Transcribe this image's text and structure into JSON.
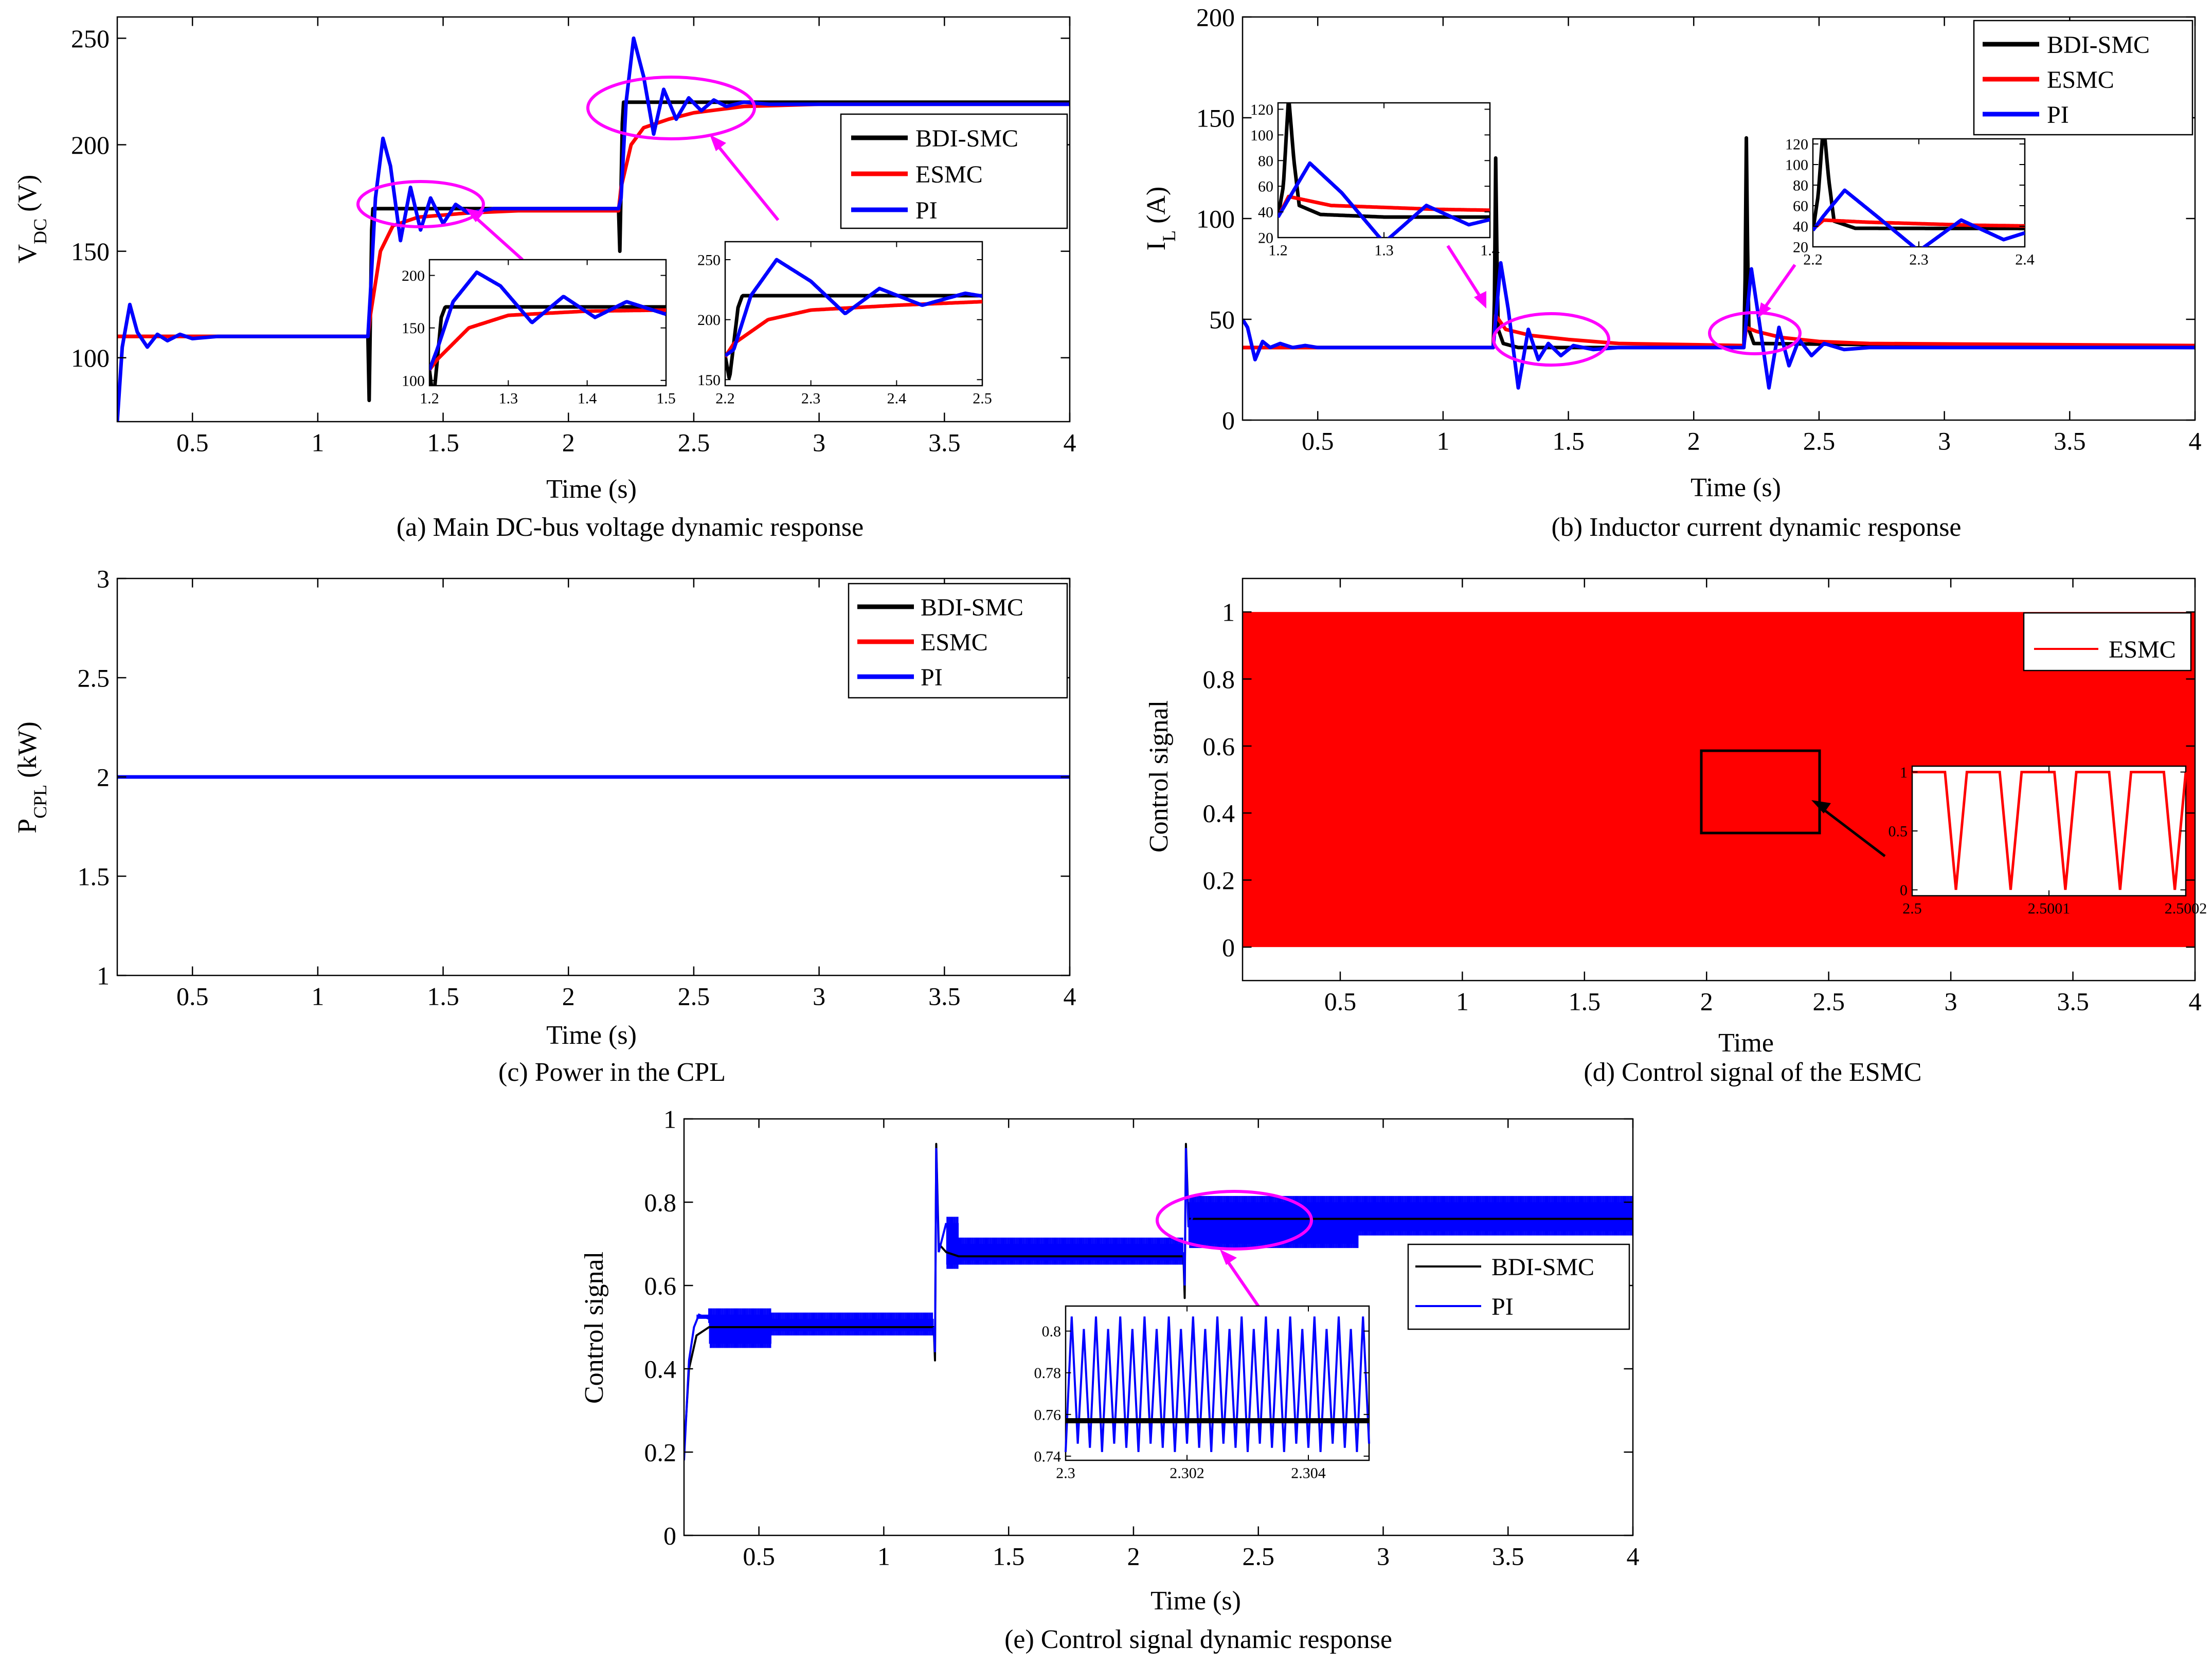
{
  "colors": {
    "bdi": "#000000",
    "esmc": "#ff0000",
    "pi": "#0000ff",
    "highlight": "#ff00ff"
  },
  "chart_data": [
    {
      "id": "a",
      "type": "line",
      "caption": "(a) Main DC-bus voltage dynamic response",
      "xlabel": "Time (s)",
      "ylabel": "V",
      "ylabel_sub": "DC",
      "ylabel_tail": " (V)",
      "xlim": [
        0.2,
        4
      ],
      "ylim": [
        70,
        260
      ],
      "xticks": [
        0.5,
        1,
        1.5,
        2,
        2.5,
        3,
        3.5,
        4
      ],
      "yticks": [
        100,
        150,
        200,
        250
      ],
      "grid": false,
      "legend": "top-right",
      "series": [
        {
          "name": "BDI-SMC",
          "x": [
            0.2,
            1.2,
            1.205,
            1.21,
            1.215,
            1.22,
            1.23,
            1.6,
            2.2,
            2.205,
            2.21,
            2.215,
            2.22,
            2.23,
            4
          ],
          "y": [
            110,
            110,
            80,
            120,
            160,
            170,
            170,
            170,
            170,
            150,
            180,
            210,
            220,
            220,
            220
          ]
        },
        {
          "name": "ESMC",
          "x": [
            0.2,
            1.2,
            1.21,
            1.25,
            1.3,
            1.4,
            1.6,
            1.8,
            2.2,
            2.21,
            2.25,
            2.3,
            2.4,
            2.5,
            2.7,
            3.0,
            4
          ],
          "y": [
            110,
            110,
            120,
            150,
            162,
            166,
            168,
            169,
            169,
            180,
            200,
            208,
            212,
            215,
            218,
            219,
            219
          ]
        },
        {
          "name": "PI",
          "x": [
            0.2,
            0.22,
            0.25,
            0.28,
            0.32,
            0.36,
            0.4,
            0.45,
            0.5,
            0.6,
            1.2,
            1.21,
            1.23,
            1.26,
            1.29,
            1.33,
            1.37,
            1.41,
            1.45,
            1.5,
            1.55,
            1.6,
            1.7,
            2.2,
            2.21,
            2.23,
            2.26,
            2.3,
            2.34,
            2.38,
            2.43,
            2.48,
            2.53,
            2.58,
            2.63,
            2.7,
            2.8,
            4
          ],
          "y": [
            70,
            105,
            125,
            112,
            105,
            111,
            108,
            111,
            109,
            110,
            110,
            130,
            175,
            203,
            190,
            155,
            180,
            160,
            175,
            163,
            172,
            168,
            170,
            170,
            175,
            220,
            250,
            232,
            205,
            226,
            212,
            222,
            216,
            221,
            218,
            220,
            219,
            219
          ]
        }
      ],
      "insets": [
        {
          "xlim": [
            1.2,
            1.5
          ],
          "ylim": [
            95,
            215
          ],
          "xticks": [
            1.2,
            1.3,
            1.4,
            1.5
          ],
          "yticks": [
            100,
            150,
            200
          ]
        },
        {
          "xlim": [
            2.2,
            2.5
          ],
          "ylim": [
            145,
            265
          ],
          "xticks": [
            2.2,
            2.3,
            2.4,
            2.5
          ],
          "yticks": [
            150,
            200,
            250
          ]
        }
      ]
    },
    {
      "id": "b",
      "type": "line",
      "caption": "(b) Inductor current dynamic response",
      "xlabel": "Time (s)",
      "ylabel": "I",
      "ylabel_sub": "L",
      "ylabel_tail": " (A)",
      "xlim": [
        0.2,
        4
      ],
      "ylim": [
        0,
        200
      ],
      "xticks": [
        0.5,
        1,
        1.5,
        2,
        2.5,
        3,
        3.5,
        4
      ],
      "yticks": [
        0,
        50,
        100,
        150,
        200
      ],
      "grid": false,
      "legend": "top-right",
      "series": [
        {
          "name": "BDI-SMC",
          "x": [
            0.2,
            1.2,
            1.205,
            1.21,
            1.215,
            1.22,
            1.24,
            1.3,
            2.2,
            2.205,
            2.21,
            2.215,
            2.22,
            2.24,
            4
          ],
          "y": [
            36,
            36,
            60,
            130,
            80,
            45,
            38,
            36,
            36,
            70,
            140,
            85,
            45,
            38,
            36
          ]
        },
        {
          "name": "ESMC",
          "x": [
            0.2,
            1.2,
            1.21,
            1.25,
            1.35,
            1.5,
            1.7,
            2.2,
            2.21,
            2.25,
            2.35,
            2.5,
            2.7,
            4
          ],
          "y": [
            36,
            36,
            52,
            45,
            42,
            40,
            38,
            37,
            46,
            44,
            41,
            39,
            38,
            37
          ]
        },
        {
          "name": "PI",
          "x": [
            0.2,
            0.22,
            0.25,
            0.28,
            0.31,
            0.35,
            0.4,
            0.45,
            0.5,
            1.2,
            1.21,
            1.23,
            1.26,
            1.3,
            1.34,
            1.38,
            1.42,
            1.47,
            1.52,
            1.6,
            1.7,
            2.2,
            2.21,
            2.23,
            2.26,
            2.3,
            2.34,
            2.38,
            2.42,
            2.47,
            2.52,
            2.6,
            2.7,
            4
          ],
          "y": [
            50,
            46,
            30,
            39,
            36,
            38,
            36,
            37,
            36,
            36,
            50,
            78,
            55,
            16,
            45,
            30,
            38,
            32,
            37,
            35,
            36,
            36,
            50,
            75,
            50,
            16,
            46,
            27,
            40,
            32,
            38,
            35,
            36,
            36
          ]
        }
      ],
      "insets": [
        {
          "xlim": [
            1.2,
            1.4
          ],
          "ylim": [
            20,
            125
          ],
          "xticks": [
            1.2,
            1.3,
            1.4
          ],
          "yticks": [
            20,
            40,
            60,
            80,
            100,
            120
          ]
        },
        {
          "xlim": [
            2.2,
            2.4
          ],
          "ylim": [
            20,
            125
          ],
          "xticks": [
            2.2,
            2.3,
            2.4
          ],
          "yticks": [
            20,
            40,
            60,
            80,
            100,
            120
          ]
        }
      ]
    },
    {
      "id": "c",
      "type": "line",
      "caption": "(c) Power in the CPL",
      "xlabel": "Time (s)",
      "ylabel": "P",
      "ylabel_sub": "CPL",
      "ylabel_tail": " (kW)",
      "xlim": [
        0.2,
        4
      ],
      "ylim": [
        1,
        3
      ],
      "xticks": [
        0.5,
        1,
        1.5,
        2,
        2.5,
        3,
        3.5,
        4
      ],
      "yticks": [
        1,
        1.5,
        2,
        2.5,
        3
      ],
      "grid": false,
      "legend": "top-right",
      "series": [
        {
          "name": "BDI-SMC",
          "x": [
            0.2,
            4
          ],
          "y": [
            2,
            2
          ]
        },
        {
          "name": "ESMC",
          "x": [
            0.2,
            4
          ],
          "y": [
            2,
            2
          ]
        },
        {
          "name": "PI",
          "x": [
            0.2,
            4
          ],
          "y": [
            2,
            2
          ]
        }
      ]
    },
    {
      "id": "d",
      "type": "area",
      "caption": "(d) Control signal of the ESMC",
      "xlabel": "Time",
      "ylabel": "Control signal",
      "xlim": [
        0.1,
        4
      ],
      "ylim": [
        -0.1,
        1.1
      ],
      "xticks": [
        0.5,
        1,
        1.5,
        2,
        2.5,
        3,
        3.5,
        4
      ],
      "yticks": [
        0,
        0.2,
        0.4,
        0.6,
        0.8,
        1
      ],
      "grid": false,
      "legend": "top-right",
      "series": [
        {
          "name": "ESMC",
          "fill_between": [
            0,
            1
          ],
          "x": [
            0.1,
            4
          ]
        }
      ],
      "insets": [
        {
          "xlim": [
            2.5,
            2.5002
          ],
          "ylim": [
            -0.05,
            1.05
          ],
          "xticks": [
            2.5,
            2.5001,
            2.5002
          ],
          "xticklabels": [
            "2.5",
            "2.5001",
            "2.5002"
          ],
          "yticks": [
            0,
            0.5,
            1
          ],
          "period": 4e-05,
          "duty": 0.6
        }
      ]
    },
    {
      "id": "e",
      "type": "line",
      "caption": "(e) Control signal dynamic response",
      "xlabel": "Time (s)",
      "ylabel": "Control signal",
      "xlim": [
        0.2,
        4
      ],
      "ylim": [
        0,
        1
      ],
      "xticks": [
        0.5,
        1,
        1.5,
        2,
        2.5,
        3,
        3.5,
        4
      ],
      "yticks": [
        0,
        0.2,
        0.4,
        0.6,
        0.8,
        1
      ],
      "grid": false,
      "legend": "right",
      "series": [
        {
          "name": "BDI-SMC",
          "x": [
            0.2,
            0.22,
            0.25,
            0.3,
            1.2,
            1.205,
            1.21,
            1.22,
            1.25,
            1.3,
            2.2,
            2.205,
            2.21,
            2.22,
            2.3,
            4
          ],
          "y": [
            0.2,
            0.4,
            0.48,
            0.5,
            0.5,
            0.42,
            0.94,
            0.7,
            0.68,
            0.67,
            0.67,
            0.57,
            0.94,
            0.76,
            0.76,
            0.76
          ]
        },
        {
          "name": "PI",
          "bands": [
            {
              "x": [
                0.25,
                0.3
              ],
              "y": [
                0.52,
                0.53
              ]
            },
            {
              "x": [
                0.3,
                0.55
              ],
              "y": [
                0.46,
                0.53
              ]
            },
            {
              "x": [
                0.55,
                1.2
              ],
              "y": [
                0.49,
                0.52
              ]
            },
            {
              "x": [
                1.25,
                1.3
              ],
              "y": [
                0.65,
                0.75
              ]
            },
            {
              "x": [
                1.3,
                2.2
              ],
              "y": [
                0.66,
                0.7
              ]
            },
            {
              "x": [
                2.22,
                2.9
              ],
              "y": [
                0.7,
                0.8
              ]
            },
            {
              "x": [
                2.9,
                4.0
              ],
              "y": [
                0.73,
                0.8
              ]
            }
          ]
        }
      ],
      "insets": [
        {
          "xlim": [
            2.3,
            2.305
          ],
          "ylim": [
            0.738,
            0.812
          ],
          "xticks": [
            2.3,
            2.302,
            2.304
          ],
          "yticks": [
            0.74,
            0.76,
            0.78,
            0.8
          ],
          "bdi_level": 0.757,
          "pi_low": 0.742,
          "pi_high": 0.81,
          "period": 0.0002
        }
      ]
    }
  ]
}
